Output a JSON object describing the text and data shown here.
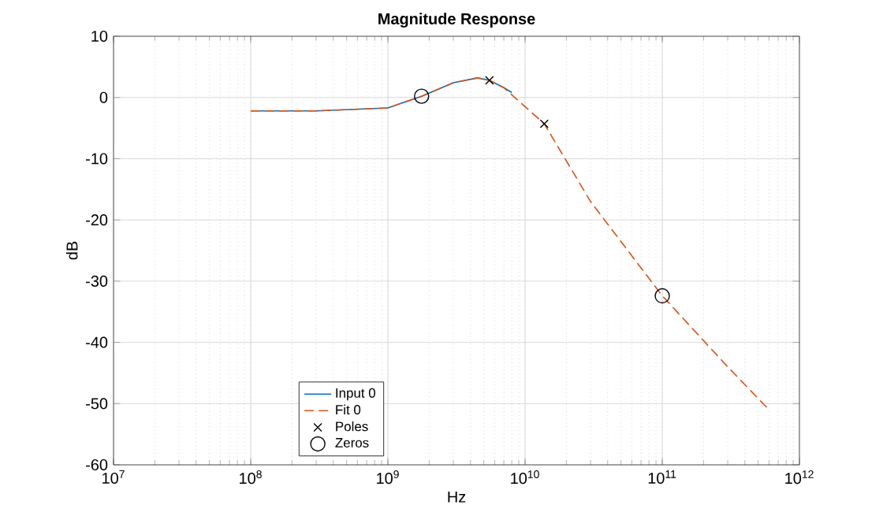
{
  "chart_data": {
    "type": "line",
    "title": "Magnitude Response",
    "xlabel": "Hz",
    "ylabel": "dB",
    "log": "x",
    "grid": true,
    "legend": "bottom",
    "xlim": [
      10000000.0,
      1000000000000.0
    ],
    "ylim": [
      -60,
      10
    ],
    "xticks": [
      {
        "value": 10000000.0,
        "label": "10$^{7}$"
      },
      {
        "value": 100000000.0,
        "label": "10$^{8}$"
      },
      {
        "value": 1000000000.0,
        "label": "10$^{9}$"
      },
      {
        "value": 10000000000.0,
        "label": "10$^{10}$"
      },
      {
        "value": 100000000000.0,
        "label": "10$^{11}$"
      },
      {
        "value": 1000000000000.0,
        "label": "10$^{12}$"
      }
    ],
    "yticks": [
      -60,
      -50,
      -40,
      -30,
      -20,
      -10,
      0,
      10
    ],
    "series": [
      {
        "name": "Input 0",
        "line_style": "solid",
        "color": "#0072bd",
        "x": [
          100000000.0,
          300000000.0,
          1000000000.0,
          1760000000.0,
          3000000000.0,
          4500000000.0,
          5500000000.0,
          7000000000.0,
          8000000000.0
        ],
        "values": [
          -2.2,
          -2.2,
          -1.7,
          0.2,
          2.4,
          3.2,
          2.8,
          1.6,
          0.8
        ]
      },
      {
        "name": "Fit 0",
        "line_style": "dashed",
        "color": "#d95319",
        "x": [
          100000000.0,
          300000000.0,
          1000000000.0,
          1760000000.0,
          3000000000.0,
          4500000000.0,
          5500000000.0,
          7000000000.0,
          10000000000.0,
          13800000000.0,
          30000000000.0,
          100000000000.0,
          300000000000.0,
          600000000000.0
        ],
        "values": [
          -2.2,
          -2.2,
          -1.7,
          0.2,
          2.4,
          3.2,
          2.8,
          1.6,
          -1.5,
          -4.3,
          -17,
          -32.4,
          -44,
          -51
        ]
      },
      {
        "name": "Poles",
        "type": "scatter",
        "marker": "cross",
        "color": "#000000",
        "x": [
          5500000000.0,
          13800000000.0
        ],
        "values": [
          2.8,
          -4.3
        ]
      },
      {
        "name": "Zeros",
        "type": "scatter",
        "marker": "circle",
        "color": "#000000",
        "x": [
          1760000000.0,
          100000000000.0
        ],
        "values": [
          0.2,
          -32.4
        ]
      }
    ]
  }
}
